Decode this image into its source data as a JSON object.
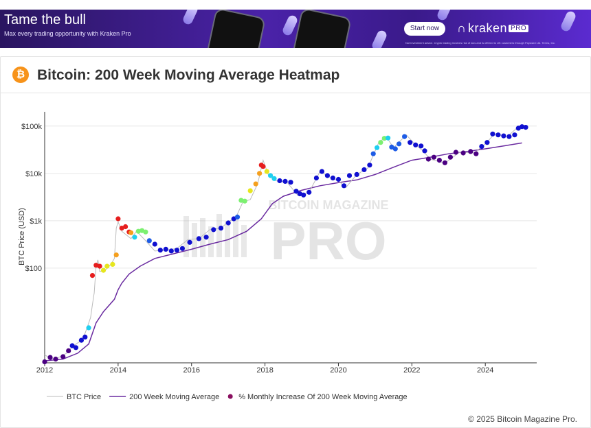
{
  "ad": {
    "title": "Tame the bull",
    "subtitle": "Max every trading opportunity with Kraken Pro",
    "cta": "Start now",
    "brand": "kraken",
    "brand_badge": "PRO",
    "fine_print": "Not investment advice. Crypto trading involves risk of loss and is offered to UK customers through Payward Ltd. Terms, Inc.",
    "colors": {
      "bg_dark": "#2a1560",
      "bg_light": "#5b2bd0"
    }
  },
  "header": {
    "title": "Bitcoin: 200 Week Moving Average Heatmap",
    "icon": "bitcoin-icon"
  },
  "watermark": {
    "top": "BITCOIN MAGAZINE",
    "big": "PRO"
  },
  "legend": {
    "items": [
      {
        "label": "BTC Price",
        "color": "#bbbbbb"
      },
      {
        "label": "200 Week Moving Average",
        "color": "#6a2ba0"
      },
      {
        "label": "% Monthly Increase Of 200 Week Moving Average",
        "color": "#8a1060"
      }
    ]
  },
  "copyright": "© 2025 Bitcoin Magazine Pro.",
  "chart_data": {
    "type": "scatter",
    "title": "Bitcoin: 200 Week Moving Average Heatmap",
    "ylabel": "BTC Price (USD)",
    "xlabel": "",
    "y_scale": "log",
    "ylim": [
      1,
      200000
    ],
    "xlim": [
      2012.0,
      2025.4
    ],
    "x_ticks": [
      2012,
      2014,
      2016,
      2018,
      2020,
      2022,
      2024
    ],
    "x_tick_labels": [
      "2012",
      "2014",
      "2016",
      "2018",
      "2020",
      "2022",
      "2024"
    ],
    "y_ticks": [
      100,
      1000,
      10000,
      100000
    ],
    "y_tick_labels": [
      "$100",
      "$1k",
      "$10k",
      "$100k"
    ],
    "grid": true,
    "legend_position": "bottom",
    "heat_colors": [
      "#4b0082",
      "#1010d0",
      "#1e5ce6",
      "#1ecff0",
      "#7cf070",
      "#e6e61e",
      "#f5a01e",
      "#e61e1e"
    ],
    "series": [
      {
        "name": "200 Week Moving Average",
        "color": "#6a2ba0",
        "points": [
          [
            2012.0,
            1.1
          ],
          [
            2012.5,
            1.2
          ],
          [
            2012.9,
            1.6
          ],
          [
            2013.2,
            2.5
          ],
          [
            2013.4,
            7
          ],
          [
            2013.6,
            12
          ],
          [
            2013.9,
            22
          ],
          [
            2014.0,
            35
          ],
          [
            2014.1,
            48
          ],
          [
            2014.3,
            75
          ],
          [
            2014.6,
            110
          ],
          [
            2015.0,
            160
          ],
          [
            2015.5,
            200
          ],
          [
            2016.0,
            250
          ],
          [
            2016.5,
            320
          ],
          [
            2017.0,
            400
          ],
          [
            2017.5,
            600
          ],
          [
            2017.9,
            1100
          ],
          [
            2018.2,
            2300
          ],
          [
            2018.5,
            3300
          ],
          [
            2019.0,
            4400
          ],
          [
            2019.5,
            5500
          ],
          [
            2020.0,
            6400
          ],
          [
            2020.5,
            7300
          ],
          [
            2021.0,
            9500
          ],
          [
            2021.5,
            13500
          ],
          [
            2022.0,
            19000
          ],
          [
            2022.5,
            22000
          ],
          [
            2023.0,
            26000
          ],
          [
            2023.5,
            29000
          ],
          [
            2024.0,
            33000
          ],
          [
            2024.5,
            38000
          ],
          [
            2025.0,
            44000
          ]
        ]
      },
      {
        "name": "BTC Price",
        "color": "#bbbbbb",
        "points": [
          [
            2012.0,
            1.5
          ],
          [
            2012.1,
            1.3
          ],
          [
            2012.3,
            1.2
          ],
          [
            2012.6,
            1.6
          ],
          [
            2012.75,
            2.2
          ],
          [
            2012.95,
            2.8
          ],
          [
            2013.1,
            4.2
          ],
          [
            2013.25,
            9
          ],
          [
            2013.3,
            17
          ],
          [
            2013.35,
            30
          ],
          [
            2013.4,
            110
          ],
          [
            2013.45,
            150
          ],
          [
            2013.5,
            85
          ],
          [
            2013.65,
            90
          ],
          [
            2013.8,
            120
          ],
          [
            2013.9,
            160
          ],
          [
            2013.95,
            700
          ],
          [
            2014.0,
            950
          ],
          [
            2014.1,
            600
          ],
          [
            2014.2,
            520
          ],
          [
            2014.35,
            420
          ],
          [
            2014.5,
            600
          ],
          [
            2014.75,
            380
          ],
          [
            2015.0,
            230
          ],
          [
            2015.3,
            240
          ],
          [
            2015.6,
            260
          ],
          [
            2015.9,
            400
          ],
          [
            2016.2,
            420
          ],
          [
            2016.5,
            650
          ],
          [
            2016.8,
            700
          ],
          [
            2017.0,
            950
          ],
          [
            2017.2,
            1150
          ],
          [
            2017.4,
            2500
          ],
          [
            2017.6,
            2800
          ],
          [
            2017.8,
            6000
          ],
          [
            2017.95,
            19000
          ],
          [
            2018.1,
            9000
          ],
          [
            2018.3,
            7000
          ],
          [
            2018.6,
            6500
          ],
          [
            2018.9,
            3400
          ],
          [
            2019.2,
            4000
          ],
          [
            2019.5,
            11000
          ],
          [
            2019.8,
            8000
          ],
          [
            2020.0,
            7000
          ],
          [
            2020.2,
            5000
          ],
          [
            2020.5,
            9500
          ],
          [
            2020.8,
            13000
          ],
          [
            2021.1,
            45000
          ],
          [
            2021.3,
            60000
          ],
          [
            2021.5,
            35000
          ],
          [
            2021.85,
            65000
          ],
          [
            2022.1,
            40000
          ],
          [
            2022.3,
            30000
          ],
          [
            2022.5,
            20000
          ],
          [
            2022.9,
            16500
          ],
          [
            2023.3,
            28000
          ],
          [
            2023.7,
            27000
          ],
          [
            2024.0,
            42000
          ],
          [
            2024.25,
            68000
          ],
          [
            2024.6,
            60000
          ],
          [
            2024.9,
            97000
          ],
          [
            2025.1,
            95000
          ]
        ]
      },
      {
        "name": "% Monthly Increase Of 200 Week Moving Average",
        "color_levels": "heat index 0 (low) to 7 (high)",
        "points": [
          [
            2012.0,
            1.05,
            0
          ],
          [
            2012.15,
            1.3,
            0
          ],
          [
            2012.3,
            1.2,
            0
          ],
          [
            2012.5,
            1.35,
            0
          ],
          [
            2012.65,
            1.8,
            0
          ],
          [
            2012.75,
            2.3,
            1
          ],
          [
            2012.85,
            2.1,
            1
          ],
          [
            2013.0,
            3.0,
            1
          ],
          [
            2013.1,
            3.5,
            1
          ],
          [
            2013.2,
            5.5,
            3
          ],
          [
            2013.3,
            70,
            7
          ],
          [
            2013.4,
            115,
            7
          ],
          [
            2013.5,
            110,
            7
          ],
          [
            2013.6,
            90,
            5
          ],
          [
            2013.7,
            110,
            5
          ],
          [
            2013.85,
            120,
            5
          ],
          [
            2013.95,
            190,
            6
          ],
          [
            2014.0,
            1100,
            7
          ],
          [
            2014.1,
            700,
            7
          ],
          [
            2014.2,
            750,
            7
          ],
          [
            2014.3,
            580,
            7
          ],
          [
            2014.35,
            560,
            6
          ],
          [
            2014.45,
            450,
            3
          ],
          [
            2014.55,
            600,
            4
          ],
          [
            2014.65,
            620,
            4
          ],
          [
            2014.75,
            580,
            4
          ],
          [
            2014.85,
            380,
            2
          ],
          [
            2015.0,
            320,
            1
          ],
          [
            2015.15,
            240,
            1
          ],
          [
            2015.3,
            250,
            1
          ],
          [
            2015.45,
            230,
            1
          ],
          [
            2015.6,
            240,
            1
          ],
          [
            2015.75,
            260,
            1
          ],
          [
            2015.95,
            350,
            1
          ],
          [
            2016.2,
            420,
            1
          ],
          [
            2016.4,
            450,
            1
          ],
          [
            2016.6,
            650,
            1
          ],
          [
            2016.8,
            700,
            1
          ],
          [
            2017.0,
            900,
            1
          ],
          [
            2017.15,
            1100,
            1
          ],
          [
            2017.25,
            1200,
            2
          ],
          [
            2017.35,
            2700,
            4
          ],
          [
            2017.45,
            2600,
            4
          ],
          [
            2017.6,
            4300,
            5
          ],
          [
            2017.75,
            6000,
            6
          ],
          [
            2017.85,
            10000,
            6
          ],
          [
            2017.9,
            15000,
            7
          ],
          [
            2017.95,
            14000,
            7
          ],
          [
            2018.05,
            11000,
            5
          ],
          [
            2018.15,
            9000,
            3
          ],
          [
            2018.25,
            7800,
            3
          ],
          [
            2018.4,
            7000,
            1
          ],
          [
            2018.55,
            6800,
            1
          ],
          [
            2018.7,
            6500,
            1
          ],
          [
            2018.85,
            4200,
            1
          ],
          [
            2018.95,
            3700,
            1
          ],
          [
            2019.05,
            3500,
            1
          ],
          [
            2019.2,
            4000,
            1
          ],
          [
            2019.4,
            8000,
            1
          ],
          [
            2019.55,
            11000,
            1
          ],
          [
            2019.7,
            9000,
            1
          ],
          [
            2019.85,
            8000,
            1
          ],
          [
            2020.0,
            7500,
            1
          ],
          [
            2020.15,
            5500,
            1
          ],
          [
            2020.3,
            9000,
            1
          ],
          [
            2020.5,
            9500,
            1
          ],
          [
            2020.7,
            12000,
            1
          ],
          [
            2020.85,
            15000,
            1
          ],
          [
            2020.95,
            26000,
            2
          ],
          [
            2021.05,
            35000,
            3
          ],
          [
            2021.15,
            45000,
            4
          ],
          [
            2021.25,
            55000,
            4
          ],
          [
            2021.35,
            56000,
            3
          ],
          [
            2021.45,
            36000,
            2
          ],
          [
            2021.55,
            33000,
            2
          ],
          [
            2021.65,
            42000,
            2
          ],
          [
            2021.8,
            60000,
            2
          ],
          [
            2021.95,
            45000,
            1
          ],
          [
            2022.1,
            40000,
            1
          ],
          [
            2022.25,
            38000,
            1
          ],
          [
            2022.35,
            30000,
            1
          ],
          [
            2022.45,
            20000,
            0
          ],
          [
            2022.6,
            22000,
            0
          ],
          [
            2022.75,
            19000,
            0
          ],
          [
            2022.9,
            16800,
            0
          ],
          [
            2023.05,
            22000,
            0
          ],
          [
            2023.2,
            28000,
            0
          ],
          [
            2023.4,
            27000,
            0
          ],
          [
            2023.6,
            29000,
            0
          ],
          [
            2023.75,
            26000,
            0
          ],
          [
            2023.9,
            37000,
            1
          ],
          [
            2024.05,
            45000,
            1
          ],
          [
            2024.2,
            68000,
            1
          ],
          [
            2024.35,
            65000,
            1
          ],
          [
            2024.5,
            62000,
            1
          ],
          [
            2024.65,
            60000,
            1
          ],
          [
            2024.8,
            65000,
            1
          ],
          [
            2024.9,
            90000,
            1
          ],
          [
            2025.0,
            97000,
            1
          ],
          [
            2025.1,
            94000,
            1
          ]
        ]
      }
    ]
  }
}
